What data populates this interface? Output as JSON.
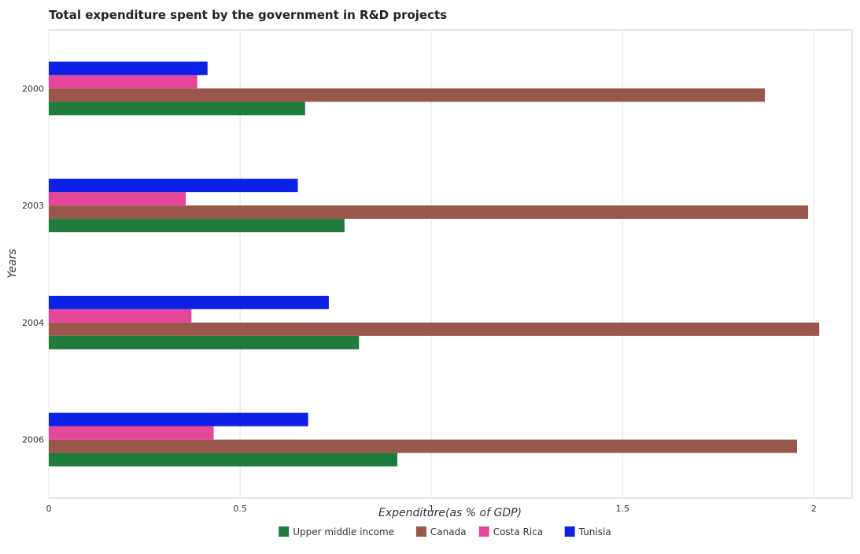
{
  "chart_data": {
    "type": "bar",
    "orientation": "horizontal",
    "title": "Total expenditure spent by the government in R&D projects",
    "xlabel": "Expenditure(as % of GDP)",
    "ylabel": "Years",
    "categories": [
      "2000",
      "2003",
      "2004",
      "2006"
    ],
    "xlim": [
      0,
      2.1
    ],
    "xticks": [
      "0",
      "0.5",
      "1",
      "1.5",
      "2"
    ],
    "grid": true,
    "legend_position": "bottom-center",
    "series": [
      {
        "name": "Upper middle income",
        "color": "#1e7b3c",
        "values": [
          0.67,
          0.773,
          0.811,
          0.911
        ]
      },
      {
        "name": "Canada",
        "color": "#98574a",
        "values": [
          1.872,
          1.985,
          2.014,
          1.956
        ]
      },
      {
        "name": "Costa Rica",
        "color": "#e5469a",
        "values": [
          0.388,
          0.358,
          0.373,
          0.431
        ]
      },
      {
        "name": "Tunisia",
        "color": "#0d21e6",
        "values": [
          0.415,
          0.651,
          0.732,
          0.678
        ]
      }
    ]
  }
}
